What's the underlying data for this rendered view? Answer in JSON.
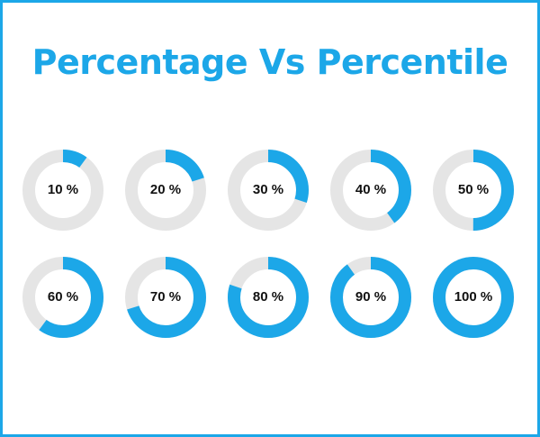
{
  "title": "Percentage Vs Percentile",
  "colors": {
    "accent": "#1ca7e8",
    "track": "#e5e5e5",
    "text": "#111111"
  },
  "donuts": [
    {
      "label": "10 %",
      "value": 10
    },
    {
      "label": "20 %",
      "value": 20
    },
    {
      "label": "30 %",
      "value": 30
    },
    {
      "label": "40 %",
      "value": 40
    },
    {
      "label": "50 %",
      "value": 50
    },
    {
      "label": "60 %",
      "value": 60
    },
    {
      "label": "70 %",
      "value": 70
    },
    {
      "label": "80 %",
      "value": 80
    },
    {
      "label": "90 %",
      "value": 90
    },
    {
      "label": "100 %",
      "value": 100
    }
  ]
}
